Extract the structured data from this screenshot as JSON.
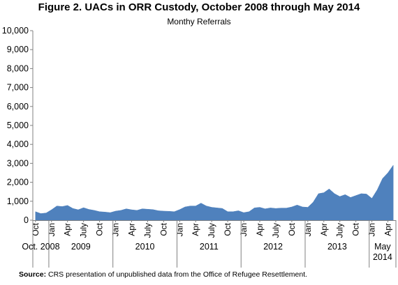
{
  "header": {
    "title": "Figure 2. UACs in ORR Custody, October 2008 through May 2014",
    "subtitle": "Monthy Referrals"
  },
  "footer": {
    "source_label": "Source:",
    "source_text": "CRS presentation of unpublished data from the Office of Refugee Resettlement."
  },
  "colors": {
    "area": "#4f81bd",
    "axis": "#808080",
    "grid": "#a6a6a6"
  },
  "chart_data": {
    "type": "area",
    "title": "Figure 2. UACs in ORR Custody, October 2008 through May 2014",
    "subtitle": "Monthy Referrals",
    "xlabel": "",
    "ylabel": "",
    "ylim": [
      0,
      10000
    ],
    "yticks": [
      0,
      1000,
      2000,
      3000,
      4000,
      5000,
      6000,
      7000,
      8000,
      9000,
      10000
    ],
    "ytick_labels": [
      "0",
      "1,000",
      "2,000",
      "3,000",
      "4,000",
      "5,000",
      "6,000",
      "7,000",
      "8,000",
      "9,000",
      "10,000"
    ],
    "grid": false,
    "legend": "none",
    "x": [
      "2008-10",
      "2008-11",
      "2008-12",
      "2009-01",
      "2009-02",
      "2009-03",
      "2009-04",
      "2009-05",
      "2009-06",
      "2009-07",
      "2009-08",
      "2009-09",
      "2009-10",
      "2009-11",
      "2009-12",
      "2010-01",
      "2010-02",
      "2010-03",
      "2010-04",
      "2010-05",
      "2010-06",
      "2010-07",
      "2010-08",
      "2010-09",
      "2010-10",
      "2010-11",
      "2010-12",
      "2011-01",
      "2011-02",
      "2011-03",
      "2011-04",
      "2011-05",
      "2011-06",
      "2011-07",
      "2011-08",
      "2011-09",
      "2011-10",
      "2011-11",
      "2011-12",
      "2012-01",
      "2012-02",
      "2012-03",
      "2012-04",
      "2012-05",
      "2012-06",
      "2012-07",
      "2012-08",
      "2012-09",
      "2012-10",
      "2012-11",
      "2012-12",
      "2013-01",
      "2013-02",
      "2013-03",
      "2013-04",
      "2013-05",
      "2013-06",
      "2013-07",
      "2013-08",
      "2013-09",
      "2013-10",
      "2013-11",
      "2013-12",
      "2014-01",
      "2014-02",
      "2014-03",
      "2014-04",
      "2014-05"
    ],
    "values": [
      450,
      350,
      380,
      550,
      750,
      720,
      780,
      620,
      550,
      660,
      570,
      520,
      450,
      430,
      400,
      480,
      520,
      600,
      550,
      520,
      600,
      580,
      560,
      500,
      480,
      470,
      450,
      560,
      700,
      750,
      750,
      900,
      750,
      680,
      650,
      620,
      450,
      450,
      500,
      400,
      450,
      650,
      680,
      600,
      650,
      620,
      640,
      640,
      700,
      800,
      700,
      680,
      950,
      1400,
      1450,
      1650,
      1400,
      1250,
      1350,
      1200,
      1300,
      1400,
      1380,
      1150,
      1600,
      2200,
      2500,
      2900
    ],
    "tick_labels": [
      "Oct",
      "Jan",
      "Apr",
      "July",
      "Oct",
      "Jan",
      "Apr",
      "July",
      "Oct",
      "Jan",
      "Apr",
      "July",
      "Oct",
      "Jan",
      "Apr",
      "July",
      "Oct",
      "Jan",
      "Apr",
      "July",
      "Oct",
      "Jan",
      "Apr",
      "July",
      "Oct",
      "Jan",
      "Apr"
    ],
    "groups": [
      {
        "label": "Oct. 2008",
        "start": 0,
        "end": 3
      },
      {
        "label": "2009",
        "start": 3,
        "end": 15
      },
      {
        "label": "2010",
        "start": 15,
        "end": 27
      },
      {
        "label": "2011",
        "start": 27,
        "end": 39
      },
      {
        "label": "2012",
        "start": 39,
        "end": 51
      },
      {
        "label": "2013",
        "start": 51,
        "end": 63
      },
      {
        "label": "May 2014",
        "start": 63,
        "end": 68
      }
    ]
  }
}
